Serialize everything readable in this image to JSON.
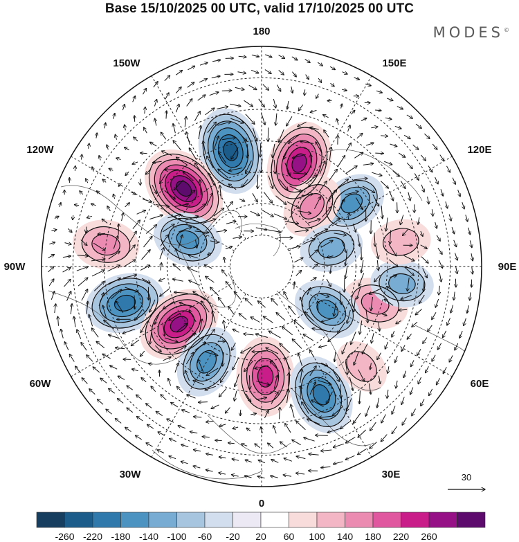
{
  "title": "Base 15/10/2025 00 UTC, valid 17/10/2025 00 UTC",
  "brand": "MODES",
  "brand_mark": "©",
  "map": {
    "projection": "north-polar-stereographic",
    "longitude_labels": {
      "top": "180",
      "bottom": "0",
      "left": "90W",
      "right": "90E",
      "upper_left_1": "150W",
      "upper_left_2": "120W",
      "upper_right_1": "150E",
      "upper_right_2": "120E",
      "lower_left_1": "60W",
      "lower_left_2": "30W",
      "lower_right_1": "60E",
      "lower_right_2": "30E"
    },
    "anomaly_centers": [
      {
        "lon_deg": -165,
        "lat_deg": 52,
        "sign": "negative",
        "intensity": 240
      },
      {
        "lon_deg": 160,
        "lat_deg": 55,
        "sign": "positive",
        "intensity": 230
      },
      {
        "lon_deg": -135,
        "lat_deg": 55,
        "sign": "positive",
        "intensity": 260
      },
      {
        "lon_deg": 125,
        "lat_deg": 55,
        "sign": "negative",
        "intensity": 140
      },
      {
        "lon_deg": -98,
        "lat_deg": 40,
        "sign": "positive",
        "intensity": 120
      },
      {
        "lon_deg": -110,
        "lat_deg": 65,
        "sign": "negative",
        "intensity": 140
      },
      {
        "lon_deg": -75,
        "lat_deg": 45,
        "sign": "negative",
        "intensity": 200
      },
      {
        "lon_deg": -55,
        "lat_deg": 58,
        "sign": "positive",
        "intensity": 230
      },
      {
        "lon_deg": -30,
        "lat_deg": 55,
        "sign": "negative",
        "intensity": 160
      },
      {
        "lon_deg": 2,
        "lat_deg": 55,
        "sign": "positive",
        "intensity": 200
      },
      {
        "lon_deg": 25,
        "lat_deg": 45,
        "sign": "negative",
        "intensity": 200
      },
      {
        "lon_deg": 140,
        "lat_deg": 65,
        "sign": "positive",
        "intensity": 120
      },
      {
        "lon_deg": 105,
        "lat_deg": 67,
        "sign": "negative",
        "intensity": 100
      },
      {
        "lon_deg": 72,
        "lat_deg": 52,
        "sign": "positive",
        "intensity": 120
      },
      {
        "lon_deg": 83,
        "lat_deg": 45,
        "sign": "negative",
        "intensity": 100
      },
      {
        "lon_deg": 57,
        "lat_deg": 65,
        "sign": "negative",
        "intensity": 140
      },
      {
        "lon_deg": 100,
        "lat_deg": 45,
        "sign": "positive",
        "intensity": 80
      },
      {
        "lon_deg": 45,
        "lat_deg": 45,
        "sign": "positive",
        "intensity": 60
      }
    ]
  },
  "vector_reference": {
    "value": "30"
  },
  "colorbar": {
    "ticks": [
      "-260",
      "-220",
      "-180",
      "-140",
      "-100",
      "-60",
      "-20",
      "20",
      "60",
      "100",
      "140",
      "180",
      "220",
      "260"
    ],
    "colors": [
      "#173e5e",
      "#1c5c8a",
      "#2f79ad",
      "#4c93c2",
      "#79acd3",
      "#a8c5e0",
      "#d2ddee",
      "#ece8f4",
      "#ffffff",
      "#f8dcdc",
      "#f2b6c5",
      "#ec8bb2",
      "#e0579f",
      "#c91d89",
      "#961185",
      "#5e0b6e"
    ]
  }
}
